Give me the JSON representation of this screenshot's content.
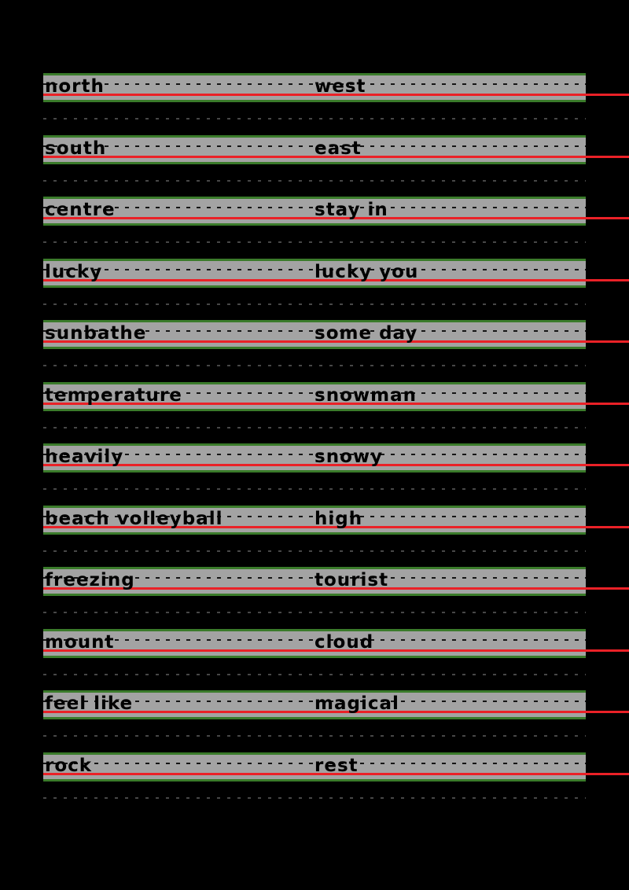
{
  "document": {
    "type": "handwriting-practice-worksheet",
    "columns": 2
  },
  "colors": {
    "background": "#000000",
    "band": "#a3a3a3",
    "guide-green": "#3a7b2a",
    "baseline-red": "#ea2127",
    "dash-dark": "#151515",
    "dash-faint": "#474747",
    "text": "#000000"
  },
  "rows": [
    {
      "left": "north",
      "right": "west"
    },
    {
      "left": "south",
      "right": "east"
    },
    {
      "left": "centre",
      "right": "stay in"
    },
    {
      "left": "lucky",
      "right": "lucky you"
    },
    {
      "left": "sunbathe",
      "right": "some day"
    },
    {
      "left": "temperature",
      "right": "snowman"
    },
    {
      "left": "heavily",
      "right": "snowy"
    },
    {
      "left": "beach volleyball",
      "right": "high"
    },
    {
      "left": "freezing",
      "right": "tourist"
    },
    {
      "left": "mount",
      "right": "cloud"
    },
    {
      "left": "feel like",
      "right": "magical"
    },
    {
      "left": "rock",
      "right": "rest"
    }
  ]
}
